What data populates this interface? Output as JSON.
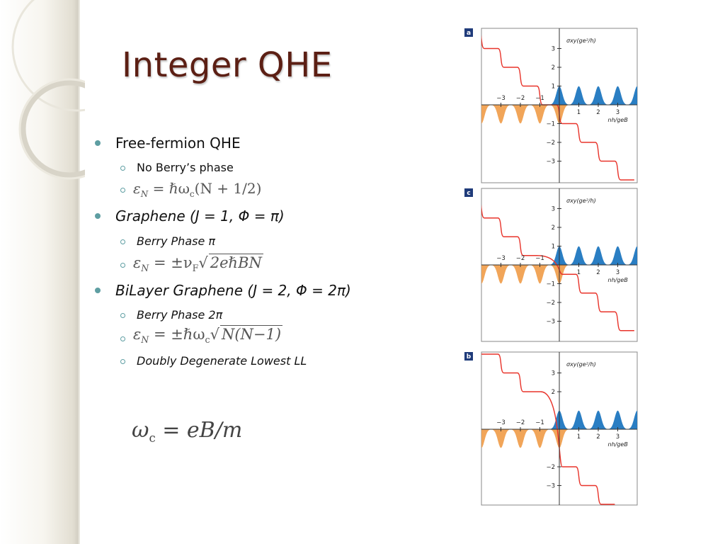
{
  "slide": {
    "title": "Integer QHE",
    "bullets": [
      {
        "text": "Free-fermion QHE",
        "italic": false,
        "sub": [
          {
            "kind": "text",
            "text": "No Berry’s phase",
            "italic": false
          },
          {
            "kind": "equation",
            "latex": "\\varepsilon_N = \\hbar\\omega_c (N + 1/2)"
          }
        ]
      },
      {
        "text": "Graphene (J = 1, Φ = π)",
        "italic": true,
        "sub": [
          {
            "kind": "text",
            "text": "Berry Phase π",
            "italic": true
          },
          {
            "kind": "equation",
            "latex": "\\varepsilon_N = \\pm v_F \\sqrt{2e\\hbar BN}"
          }
        ]
      },
      {
        "text": "BiLayer Graphene (J = 2, Φ = 2π)",
        "italic": true,
        "sub": [
          {
            "kind": "text",
            "text": "Berry Phase 2π",
            "italic": true
          },
          {
            "kind": "equation",
            "latex": "\\varepsilon_N = \\pm\\hbar\\omega_c \\sqrt{N(N-1)}"
          },
          {
            "kind": "text",
            "text": "Doubly Degenerate Lowest LL",
            "italic": true
          }
        ]
      }
    ],
    "footer_equation": "\\omega_c = eB/m"
  },
  "eq_text": {
    "e1": {
      "lhs": "ε",
      "lhs_sub": "N",
      "mid": " = ℏω",
      "mid_sub": "c",
      "rhs": "(N + 1/2)"
    },
    "e2": {
      "lhs": "ε",
      "lhs_sub": "N",
      "mid": " = ±ν",
      "mid_sub": "F",
      "sqrt": "2eℏBN"
    },
    "e3": {
      "lhs": "ε",
      "lhs_sub": "N",
      "mid": " = ±ℏω",
      "mid_sub": "c",
      "sqrt": "N(N−1)"
    },
    "footer": {
      "lhs": "ω",
      "lhs_sub": "c",
      "rhs": " = eB/m"
    }
  },
  "colors": {
    "title": "#5c1f14",
    "bullet": "#5e9ea2",
    "step_curve": "#e8332a",
    "electron_peaks": "#1f77c0",
    "hole_peaks": "#f0a050"
  },
  "chart_data": [
    {
      "type": "line",
      "panel_label": "a",
      "ylabel": "σxy(ge²/h)",
      "xlabel": "nh/geB",
      "x_ticks": [
        "−3",
        "−2",
        "−1",
        "1",
        "2",
        "3"
      ],
      "y_ticks": [
        "3",
        "2",
        "1",
        "−1",
        "−2",
        "−3"
      ],
      "series": [
        {
          "kind": "step",
          "x": [
            -4,
            -3,
            -2,
            -1,
            0,
            1,
            2,
            3,
            4
          ],
          "y": [
            4,
            3,
            2,
            1,
            0,
            -1,
            -2,
            -3,
            -4
          ],
          "step_at": "integers"
        },
        {
          "kind": "peaks-up",
          "centers": [
            0,
            1,
            2,
            3,
            4
          ]
        },
        {
          "kind": "peaks-down",
          "centers": [
            -4,
            -3,
            -2,
            -1,
            0
          ]
        }
      ]
    },
    {
      "type": "line",
      "panel_label": "c",
      "ylabel": "σxy(ge²/h)",
      "xlabel": "nh/geB",
      "x_ticks": [
        "−3",
        "−2",
        "−1",
        "1",
        "2",
        "3"
      ],
      "y_ticks": [
        "3",
        "2",
        "1",
        "−1",
        "−2",
        "−3"
      ],
      "series": [
        {
          "kind": "step",
          "y_plateaus": [
            3.5,
            2.5,
            1.5,
            0.5,
            -0.5,
            -1.5,
            -2.5,
            -3.5
          ],
          "step_at": "integers"
        },
        {
          "kind": "peaks-up",
          "centers": [
            0,
            1,
            2,
            3,
            4
          ]
        },
        {
          "kind": "peaks-down",
          "centers": [
            -4,
            -3,
            -2,
            -1,
            0
          ]
        }
      ]
    },
    {
      "type": "line",
      "panel_label": "b",
      "ylabel": "σxy(ge²/h)",
      "xlabel": "nh/geB",
      "x_ticks": [
        "−3",
        "−2",
        "−1",
        "1",
        "2",
        "3"
      ],
      "y_ticks": [
        "3",
        "2",
        "−2",
        "−3"
      ],
      "series": [
        {
          "kind": "step",
          "y_plateaus": [
            4,
            3,
            2,
            -2,
            -3,
            -4
          ],
          "step_at": "integers",
          "double_step_at_zero": true
        },
        {
          "kind": "peaks-up",
          "centers": [
            0,
            1,
            2,
            3,
            4
          ]
        },
        {
          "kind": "peaks-down",
          "centers": [
            -4,
            -3,
            -2,
            -1,
            0
          ]
        }
      ]
    }
  ]
}
